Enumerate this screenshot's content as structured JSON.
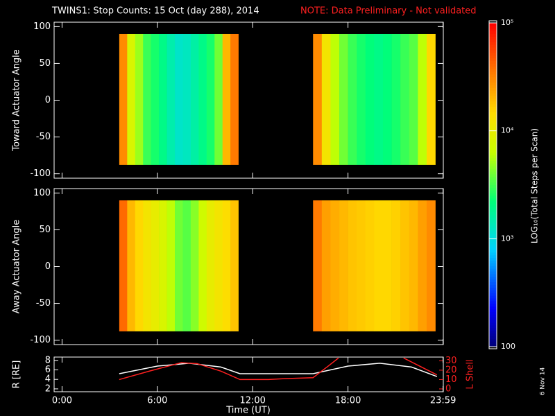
{
  "chart_data": {
    "type": "spectrogram",
    "title": "TWINS1: Stop Counts: 15 Oct (day 288), 2014",
    "note": "NOTE: Data Preliminary - Not validated",
    "xlabel": "Time (UT)",
    "xlim": [
      -0.5,
      24
    ],
    "xticks": [
      {
        "value": 0,
        "label": "0:00"
      },
      {
        "value": 6,
        "label": "6:00"
      },
      {
        "value": 12,
        "label": "12:00"
      },
      {
        "value": 18,
        "label": "18:00"
      },
      {
        "value": 23.983,
        "label": "23:59"
      }
    ],
    "date": "6 Nov 14",
    "colorbar": {
      "label": "LOG₁₀(Total Steps per Scan)",
      "log": true,
      "clim": [
        100,
        100000
      ],
      "ticks": [
        {
          "value": 100,
          "label": "100"
        },
        {
          "value": 1000,
          "label": "10³"
        },
        {
          "value": 10000,
          "label": "10⁴"
        },
        {
          "value": 100000,
          "label": "10⁵"
        }
      ]
    },
    "panels": [
      {
        "ylabel": "Toward Actuator Angle",
        "ylim": [
          -106,
          106
        ],
        "yticks": [
          -100,
          -50,
          0,
          50,
          100
        ],
        "angles": [
          -88,
          90
        ],
        "segments": [
          {
            "bins": [
              3.6,
              4.1,
              4.6,
              5.1,
              5.6,
              6.1,
              6.6,
              7.1,
              7.6,
              8.1,
              8.6,
              9.1,
              9.6,
              10.1,
              10.6,
              11.1
            ],
            "values": [
              30000,
              8000,
              5000,
              3000,
              2500,
              2000,
              1500,
              1200,
              1300,
              1600,
              2000,
              2500,
              4000,
              20000,
              35000
            ]
          },
          {
            "bins": [
              15.8,
              16.35,
              16.9,
              17.45,
              18,
              18.55,
              19.1,
              19.65,
              20.2,
              20.75,
              21.3,
              21.85,
              22.4,
              22.95,
              23.5
            ],
            "values": [
              30000,
              12000,
              6000,
              4000,
              3000,
              2500,
              2200,
              2000,
              2200,
              2500,
              3000,
              3500,
              6000,
              15000
            ]
          }
        ]
      },
      {
        "ylabel": "Away Actuator Angle",
        "ylim": [
          -106,
          106
        ],
        "yticks": [
          -100,
          -50,
          0,
          50,
          100
        ],
        "angles": [
          -88,
          90
        ],
        "segments": [
          {
            "bins": [
              3.6,
              4.1,
              4.6,
              5.1,
              5.6,
              6.1,
              6.6,
              7.1,
              7.6,
              8.1,
              8.6,
              9.1,
              9.6,
              10.1,
              10.6,
              11.1
            ],
            "values": [
              40000,
              20000,
              15000,
              12000,
              10000,
              8000,
              6000,
              4000,
              3500,
              4500,
              7000,
              10000,
              12000,
              14000,
              18000
            ]
          },
          {
            "bins": [
              15.8,
              16.35,
              16.9,
              17.45,
              18,
              18.55,
              19.1,
              19.65,
              20.2,
              20.75,
              21.3,
              21.85,
              22.4,
              22.95,
              23.5
            ],
            "values": [
              35000,
              25000,
              22000,
              20000,
              18000,
              17000,
              16000,
              15000,
              15000,
              16000,
              18000,
              20000,
              25000,
              30000
            ]
          }
        ]
      }
    ],
    "orbit": {
      "ylabel": "R [RE]",
      "ylim": [
        1.4,
        8.7
      ],
      "yticks": [
        2,
        4,
        6,
        8
      ],
      "y2label": "L Shell",
      "y2lim": [
        -3,
        34
      ],
      "y2ticks": [
        0,
        10,
        20,
        30
      ],
      "series": [
        {
          "name": "R",
          "color": "#ffffff",
          "x": [
            3.6,
            6,
            8,
            10,
            11.2,
            15.8,
            18,
            20,
            22,
            23.6
          ],
          "values": [
            5.2,
            6.8,
            7.4,
            6.6,
            5.2,
            5.2,
            6.8,
            7.4,
            6.6,
            4.6
          ]
        },
        {
          "name": "L Shell",
          "color": "#ff2020",
          "axis": "y2",
          "x": [
            3.6,
            5.5,
            7.5,
            8.5,
            10,
            11.2,
            13,
            14,
            15.8,
            16.8,
            17.4,
            null,
            21.5,
            23.6
          ],
          "values": [
            10,
            19,
            28,
            27,
            19,
            10,
            10,
            11,
            12,
            25,
            33,
            null,
            33,
            15
          ]
        }
      ]
    }
  }
}
